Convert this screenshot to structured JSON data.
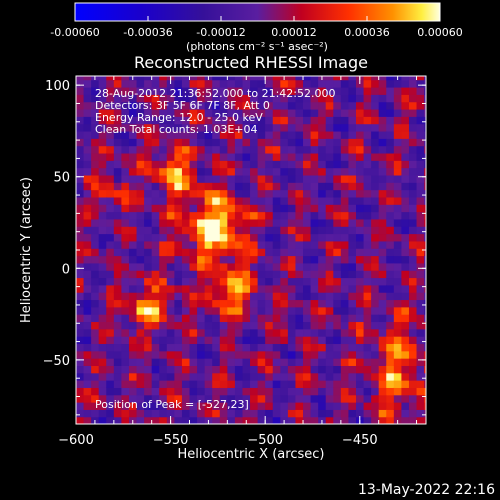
{
  "chart_data": {
    "type": "heatmap",
    "title": "Reconstructed RHESSI Image",
    "xlabel": "Heliocentric X (arcsec)",
    "ylabel": "Heliocentric Y (arcsec)",
    "xlim": [
      -600,
      -415
    ],
    "ylim": [
      -85,
      105
    ],
    "xticks": [
      -600,
      -550,
      -500,
      -450
    ],
    "yticks": [
      -50,
      0,
      50,
      100
    ],
    "colorbar": {
      "label": "(photons cm⁻² s⁻¹ asec⁻²)",
      "range": [
        -0.0006,
        0.0006
      ],
      "ticks": [
        "-0.00060",
        "-0.00036",
        "-0.00012",
        "0.00012",
        "0.00036",
        "0.00060"
      ]
    },
    "annotations": {
      "time_range": "28-Aug-2012 21:36:52.000 to 21:42:52.000",
      "detectors": "Detectors: 3F 5F 6F 7F 8F, Att 0",
      "energy_range": "Energy Range: 12.0 - 25.0 keV",
      "clean": "Clean    Total counts: 1.03E+04",
      "peak": "Position of Peak = [-527,23]"
    },
    "sources": [
      {
        "x": -527,
        "y": 23,
        "amplitude": 0.0006,
        "sigma_x": 11,
        "sigma_y": 12
      },
      {
        "x": -548,
        "y": 52,
        "amplitude": 0.00042,
        "sigma_x": 8,
        "sigma_y": 9
      },
      {
        "x": -519,
        "y": -12,
        "amplitude": 0.0004,
        "sigma_x": 9,
        "sigma_y": 10
      },
      {
        "x": -562,
        "y": -21,
        "amplitude": 0.0004,
        "sigma_x": 8,
        "sigma_y": 9
      },
      {
        "x": -430,
        "y": -55,
        "amplitude": 0.00036,
        "sigma_x": 10,
        "sigma_y": 18
      },
      {
        "x": -580,
        "y": 40,
        "amplitude": 0.0002,
        "sigma_x": 8,
        "sigma_y": 8
      }
    ]
  },
  "footer": {
    "timestamp": "13-May-2022 22:16"
  }
}
